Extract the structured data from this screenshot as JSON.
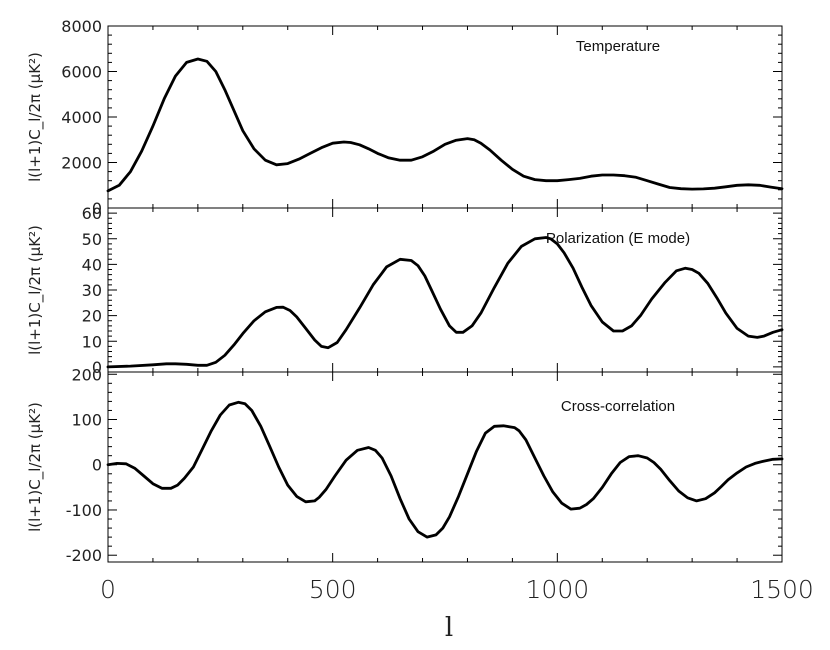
{
  "chart_data": [
    {
      "type": "line",
      "title": "Temperature",
      "ylabel": "l(l+1)C_l/2π  (μK²)",
      "xlim": [
        0,
        1500
      ],
      "ylim": [
        0,
        8000
      ],
      "yticks": [
        0,
        2000,
        4000,
        6000,
        8000
      ],
      "tick_labels": [
        "0",
        "2000",
        "4000",
        "6000",
        "8000"
      ],
      "series": [
        {
          "name": "Temperature",
          "x": [
            0,
            25,
            50,
            75,
            100,
            125,
            150,
            175,
            200,
            220,
            240,
            260,
            280,
            300,
            325,
            350,
            375,
            400,
            425,
            450,
            475,
            500,
            525,
            540,
            560,
            580,
            600,
            625,
            650,
            675,
            700,
            725,
            750,
            775,
            800,
            815,
            830,
            850,
            875,
            900,
            925,
            950,
            975,
            1000,
            1025,
            1050,
            1075,
            1100,
            1125,
            1150,
            1175,
            1200,
            1225,
            1250,
            1275,
            1300,
            1325,
            1350,
            1375,
            1400,
            1425,
            1450,
            1475,
            1500
          ],
          "values": [
            750,
            1000,
            1600,
            2500,
            3600,
            4800,
            5800,
            6400,
            6550,
            6450,
            6000,
            5200,
            4300,
            3400,
            2600,
            2100,
            1900,
            1950,
            2150,
            2400,
            2650,
            2850,
            2900,
            2880,
            2780,
            2600,
            2400,
            2200,
            2100,
            2100,
            2250,
            2500,
            2800,
            2980,
            3050,
            3000,
            2850,
            2550,
            2100,
            1700,
            1400,
            1250,
            1200,
            1200,
            1250,
            1300,
            1400,
            1450,
            1450,
            1420,
            1350,
            1200,
            1050,
            900,
            850,
            830,
            840,
            870,
            930,
            1000,
            1020,
            1000,
            920,
            850
          ]
        }
      ]
    },
    {
      "type": "line",
      "title": "Polarization (E mode)",
      "ylabel": "l(l+1)C_l/2π  (μK²)",
      "xlim": [
        0,
        1500
      ],
      "ylim": [
        -2,
        62
      ],
      "yticks": [
        0,
        10,
        20,
        30,
        40,
        50,
        60
      ],
      "tick_labels": [
        "0",
        "10",
        "20",
        "30",
        "40",
        "50",
        "60"
      ],
      "series": [
        {
          "name": "Polarization (E mode)",
          "x": [
            0,
            50,
            100,
            130,
            150,
            175,
            200,
            220,
            240,
            260,
            280,
            300,
            325,
            350,
            375,
            390,
            405,
            420,
            440,
            460,
            475,
            490,
            510,
            530,
            560,
            590,
            620,
            650,
            675,
            690,
            705,
            720,
            740,
            760,
            775,
            790,
            810,
            830,
            860,
            890,
            920,
            950,
            975,
            985,
            1000,
            1015,
            1035,
            1055,
            1075,
            1100,
            1125,
            1145,
            1165,
            1185,
            1210,
            1240,
            1265,
            1285,
            1300,
            1315,
            1335,
            1355,
            1375,
            1400,
            1425,
            1445,
            1460,
            1480,
            1500
          ],
          "values": [
            0,
            0.3,
            0.8,
            1.2,
            1.2,
            1,
            0.6,
            0.6,
            1.8,
            4.5,
            8.5,
            13,
            18,
            21.5,
            23.2,
            23.3,
            22,
            19.5,
            15,
            10.5,
            8,
            7.5,
            9.5,
            14.5,
            23,
            32,
            39,
            42,
            41.5,
            39.5,
            35.5,
            30,
            22.5,
            16,
            13.5,
            13.5,
            16,
            21,
            31,
            40.5,
            47,
            50,
            50.5,
            50,
            48,
            44.5,
            38.5,
            31,
            24,
            17.5,
            14,
            14,
            16,
            20,
            26.5,
            33,
            37.5,
            38.5,
            38,
            36.5,
            32.5,
            27,
            21,
            15,
            12,
            11.5,
            12,
            13.5,
            14.5
          ]
        }
      ]
    },
    {
      "type": "line",
      "title": "Cross-correlation",
      "ylabel": "l(l+1)C_l/2π  (μK²)",
      "xlim": [
        0,
        1500
      ],
      "ylim": [
        -215,
        205
      ],
      "yticks": [
        -200,
        -100,
        0,
        100,
        200
      ],
      "tick_labels": [
        "-200",
        "-100",
        "0",
        "100",
        "200"
      ],
      "series": [
        {
          "name": "Cross-correlation",
          "x": [
            0,
            20,
            40,
            60,
            80,
            100,
            120,
            140,
            155,
            170,
            190,
            210,
            230,
            250,
            270,
            290,
            305,
            320,
            340,
            360,
            380,
            400,
            420,
            440,
            460,
            470,
            485,
            505,
            530,
            555,
            580,
            595,
            610,
            630,
            650,
            670,
            690,
            710,
            730,
            745,
            760,
            780,
            800,
            820,
            840,
            860,
            880,
            905,
            915,
            930,
            950,
            970,
            990,
            1010,
            1030,
            1050,
            1065,
            1080,
            1100,
            1120,
            1140,
            1160,
            1180,
            1200,
            1215,
            1230,
            1250,
            1270,
            1290,
            1310,
            1330,
            1350,
            1365,
            1380,
            1400,
            1420,
            1440,
            1460,
            1480,
            1500
          ],
          "values": [
            0,
            3,
            2,
            -8,
            -25,
            -42,
            -52,
            -52,
            -45,
            -30,
            -5,
            35,
            75,
            110,
            132,
            138,
            135,
            120,
            85,
            40,
            -5,
            -45,
            -70,
            -82,
            -80,
            -72,
            -55,
            -25,
            10,
            32,
            38,
            32,
            15,
            -25,
            -75,
            -120,
            -148,
            -160,
            -155,
            -140,
            -115,
            -70,
            -20,
            30,
            70,
            85,
            86,
            82,
            75,
            55,
            15,
            -25,
            -60,
            -85,
            -98,
            -96,
            -88,
            -75,
            -50,
            -20,
            5,
            18,
            20,
            15,
            5,
            -10,
            -35,
            -58,
            -73,
            -80,
            -75,
            -62,
            -48,
            -33,
            -18,
            -5,
            3,
            8,
            12,
            13
          ]
        }
      ]
    }
  ],
  "x_axis": {
    "label": "l",
    "ticks": [
      0,
      500,
      1000,
      1500
    ],
    "tick_labels": [
      "0",
      "500",
      "1000",
      "1500"
    ]
  }
}
